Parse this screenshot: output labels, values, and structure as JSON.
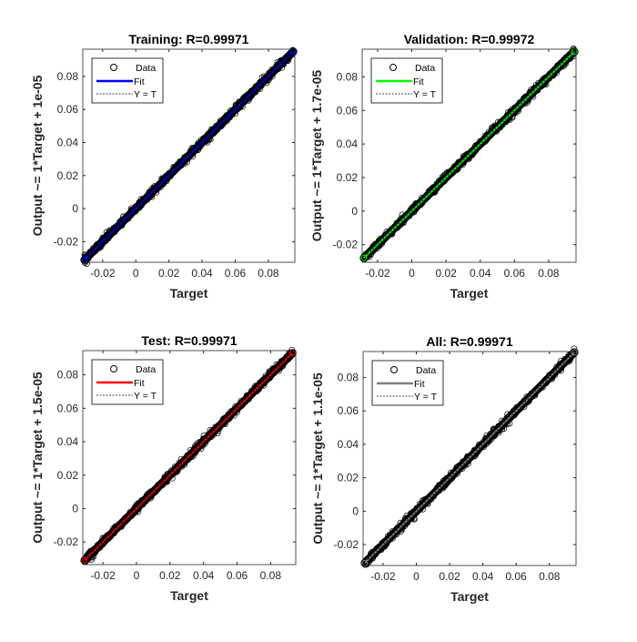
{
  "chart_data": [
    {
      "type": "scatter",
      "title": "Training: R=0.99971",
      "xlabel": "Target",
      "ylabel": "Output ~= 1*Target + 1e-05",
      "xlim": [
        -0.032,
        0.096
      ],
      "ylim": [
        -0.0325,
        0.0965
      ],
      "xticks": [
        -0.02,
        0,
        0.02,
        0.04,
        0.06,
        0.08
      ],
      "yticks": [
        -0.02,
        0,
        0.02,
        0.04,
        0.06,
        0.08
      ],
      "xtick_labels": [
        "-0.02",
        "0",
        "0.02",
        "0.04",
        "0.06",
        "0.08"
      ],
      "ytick_labels": [
        "-0.02",
        "0",
        "0.02",
        "0.04",
        "0.06",
        "0.08"
      ],
      "fit": {
        "slope": 1,
        "intercept": 1e-05
      },
      "data_range": [
        -0.031,
        0.095
      ],
      "fit_color": "#0000ff",
      "legend": [
        "Data",
        "Fit",
        "Y = T"
      ],
      "legend_position": "top-left"
    },
    {
      "type": "scatter",
      "title": "Validation: R=0.99972",
      "xlabel": "Target",
      "ylabel": "Output ~= 1*Target + 1.7e-05",
      "xlim": [
        -0.029,
        0.096
      ],
      "ylim": [
        -0.0305,
        0.0965
      ],
      "xticks": [
        -0.02,
        0,
        0.02,
        0.04,
        0.06,
        0.08
      ],
      "yticks": [
        -0.02,
        0,
        0.02,
        0.04,
        0.06,
        0.08
      ],
      "xtick_labels": [
        "-0.02",
        "0",
        "0.02",
        "0.04",
        "0.06",
        "0.08"
      ],
      "ytick_labels": [
        "-0.02",
        "0",
        "0.02",
        "0.04",
        "0.06",
        "0.08"
      ],
      "fit": {
        "slope": 1,
        "intercept": 1.7e-05
      },
      "data_range": [
        -0.028,
        0.095
      ],
      "fit_color": "#00ff00",
      "legend": [
        "Data",
        "Fit",
        "Y = T"
      ],
      "legend_position": "top-left"
    },
    {
      "type": "scatter",
      "title": "Test: R=0.99971",
      "xlabel": "Target",
      "ylabel": "Output ~= 1*Target + 1.5e-05",
      "xlim": [
        -0.032,
        0.095
      ],
      "ylim": [
        -0.0335,
        0.0945
      ],
      "xticks": [
        -0.02,
        0,
        0.02,
        0.04,
        0.06,
        0.08
      ],
      "yticks": [
        -0.02,
        0,
        0.02,
        0.04,
        0.06,
        0.08
      ],
      "xtick_labels": [
        "-0.02",
        "0",
        "0.02",
        "0.04",
        "0.06",
        "0.08"
      ],
      "ytick_labels": [
        "-0.02",
        "0",
        "0.02",
        "0.04",
        "0.06",
        "0.08"
      ],
      "fit": {
        "slope": 1,
        "intercept": 1.5e-05
      },
      "data_range": [
        -0.031,
        0.093
      ],
      "fit_color": "#ff0000",
      "legend": [
        "Data",
        "Fit",
        "Y = T"
      ],
      "legend_position": "top-left"
    },
    {
      "type": "scatter",
      "title": "All: R=0.99971",
      "xlabel": "Target",
      "ylabel": "Output ~= 1*Target + 1.1e-05",
      "xlim": [
        -0.032,
        0.096
      ],
      "ylim": [
        -0.0325,
        0.0955
      ],
      "xticks": [
        -0.02,
        0,
        0.02,
        0.04,
        0.06,
        0.08
      ],
      "yticks": [
        -0.02,
        0,
        0.02,
        0.04,
        0.06,
        0.08
      ],
      "xtick_labels": [
        "-0.02",
        "0",
        "0.02",
        "0.04",
        "0.06",
        "0.08"
      ],
      "ytick_labels": [
        "-0.02",
        "0",
        "0.02",
        "0.04",
        "0.06",
        "0.08"
      ],
      "fit": {
        "slope": 1,
        "intercept": 1.1e-05
      },
      "data_range": [
        -0.031,
        0.095
      ],
      "fit_color": "#808080",
      "legend": [
        "Data",
        "Fit",
        "Y = T"
      ],
      "legend_position": "top-left"
    }
  ]
}
